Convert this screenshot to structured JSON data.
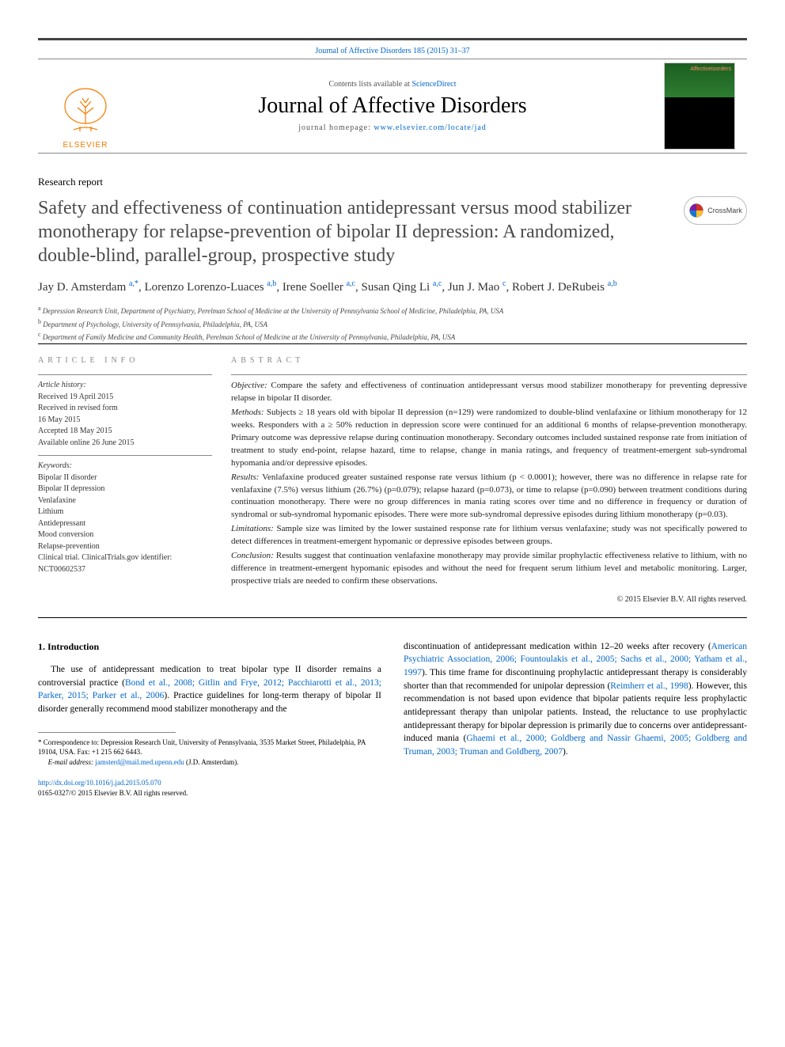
{
  "citation": "Journal of Affective Disorders 185 (2015) 31–37",
  "masthead": {
    "contents_prefix": "Contents lists available at ",
    "contents_link": "ScienceDirect",
    "journal_name": "Journal of Affective Disorders",
    "homepage_prefix": "journal homepage: ",
    "homepage_link": "www.elsevier.com/locate/jad",
    "elsevier_label": "ELSEVIER"
  },
  "article_type": "Research report",
  "title": "Safety and effectiveness of continuation antidepressant versus mood stabilizer monotherapy for relapse-prevention of bipolar II depression: A randomized, double-blind, parallel-group, prospective study",
  "crossmark_label": "CrossMark",
  "authors_html": "Jay D. Amsterdam <sup>a,*</sup>, Lorenzo Lorenzo-Luaces <sup>a,b</sup>, Irene Soeller <sup>a,c</sup>, Susan Qing Li <sup>a,c</sup>, Jun J. Mao <sup>c</sup>, Robert J. DeRubeis <sup>a,b</sup>",
  "affiliations": [
    "a Depression Research Unit, Department of Psychiatry, Perelman School of Medicine at the University of Pennsylvania School of Medicine, Philadelphia, PA, USA",
    "b Department of Psychology, University of Pennsylvania, Philadelphia, PA, USA",
    "c Department of Family Medicine and Community Health, Perelman School of Medicine at the University of Pennsylvania, Philadelphia, PA, USA"
  ],
  "article_info": {
    "heading": "ARTICLE INFO",
    "history_label": "Article history:",
    "history": [
      "Received 19 April 2015",
      "Received in revised form",
      "16 May 2015",
      "Accepted 18 May 2015",
      "Available online 26 June 2015"
    ],
    "keywords_label": "Keywords:",
    "keywords": [
      "Bipolar II disorder",
      "Bipolar II depression",
      "Venlafaxine",
      "Lithium",
      "Antidepressant",
      "Mood conversion",
      "Relapse-prevention",
      "Clinical trial. ClinicalTrials.gov identifier:",
      "NCT00602537"
    ]
  },
  "abstract": {
    "heading": "ABSTRACT",
    "paragraphs": [
      {
        "label": "Objective:",
        "text": " Compare the safety and effectiveness of continuation antidepressant versus mood stabilizer monotherapy for preventing depressive relapse in bipolar II disorder."
      },
      {
        "label": "Methods:",
        "text": " Subjects ≥ 18 years old with bipolar II depression (n=129) were randomized to double-blind venlafaxine or lithium monotherapy for 12 weeks. Responders with a ≥ 50% reduction in depression score were continued for an additional 6 months of relapse-prevention monotherapy. Primary outcome was depressive relapse during continuation monotherapy. Secondary outcomes included sustained response rate from initiation of treatment to study end-point, relapse hazard, time to relapse, change in mania ratings, and frequency of treatment-emergent sub-syndromal hypomania and/or depressive episodes."
      },
      {
        "label": "Results:",
        "text": " Venlafaxine produced greater sustained response rate versus lithium (p < 0.0001); however, there was no difference in relapse rate for venlafaxine (7.5%) versus lithium (26.7%) (p=0.079); relapse hazard (p=0.073), or time to relapse (p=0.090) between treatment conditions during continuation monotherapy. There were no group differences in mania rating scores over time and no difference in frequency or duration of syndromal or sub-syndromal hypomanic episodes. There were more sub-syndromal depressive episodes during lithium monotherapy (p=0.03)."
      },
      {
        "label": "Limitations:",
        "text": " Sample size was limited by the lower sustained response rate for lithium versus venlafaxine; study was not specifically powered to detect differences in treatment-emergent hypomanic or depressive episodes between groups."
      },
      {
        "label": "Conclusion:",
        "text": " Results suggest that continuation venlafaxine monotherapy may provide similar prophylactic effectiveness relative to lithium, with no difference in treatment-emergent hypomanic episodes and without the need for frequent serum lithium level and metabolic monitoring. Larger, prospective trials are needed to confirm these observations."
      }
    ],
    "copyright": "© 2015 Elsevier B.V. All rights reserved."
  },
  "body": {
    "intro_heading": "1.  Introduction",
    "left_p1_pre": "The use of antidepressant medication to treat bipolar type II disorder remains a controversial practice (",
    "left_refs": "Bond et al., 2008; Gitlin and Frye, 2012; Pacchiarotti et al., 2013; Parker, 2015; Parker et al., 2006",
    "left_p1_post": "). Practice guidelines for long-term therapy of bipolar II disorder generally recommend mood stabilizer monotherapy and the",
    "right_p1_pre": "discontinuation of antidepressant medication within 12–20 weeks after recovery (",
    "right_refs1": "American Psychiatric Association, 2006; Fountoulakis et al., 2005; Sachs et al., 2000; Yatham et al., 1997",
    "right_p1_mid": "). This time frame for discontinuing prophylactic antidepressant therapy is considerably shorter than that recommended for unipolar depression (",
    "right_refs2": "Reimherr et al., 1998",
    "right_p1_mid2": "). However, this recommendation is not based upon evidence that bipolar patients require less prophylactic antidepressant therapy than unipolar patients. Instead, the reluctance to use prophylactic antidepressant therapy for bipolar depression is primarily due to concerns over antidepressant-induced mania (",
    "right_refs3": "Ghaemi et al., 2000; Goldberg and Nassir Ghaemi, 2005; Goldberg and Truman, 2003; Truman and Goldberg, 2007",
    "right_p1_end": ")."
  },
  "footnote": {
    "correspondence": "* Correspondence to: Depression Research Unit, University of Pennsylvania, 3535 Market Street, Philadelphia, PA 19104, USA. Fax: +1 215 662 6443.",
    "email_label": "E-mail address: ",
    "email": "jamsterd@mail.med.upenn.edu",
    "email_suffix": " (J.D. Amsterdam)."
  },
  "doi": {
    "link": "http://dx.doi.org/10.1016/j.jad.2015.05.070",
    "issn_line": "0165-0327/© 2015 Elsevier B.V. All rights reserved."
  },
  "colors": {
    "link": "#0066cc",
    "text": "#000000",
    "muted": "#888888",
    "orange": "#f57c00"
  }
}
